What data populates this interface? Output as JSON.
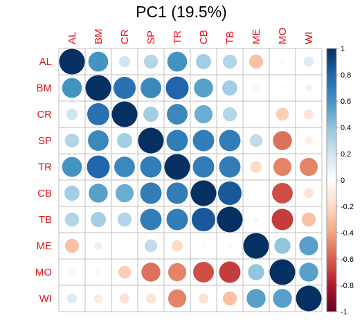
{
  "chart_data": {
    "type": "heatmap",
    "style": "circle-correlation-matrix",
    "title": "PC1 (19.5%)",
    "variables": [
      "AL",
      "BM",
      "CR",
      "SP",
      "TR",
      "CB",
      "TB",
      "ME",
      "MO",
      "WI"
    ],
    "matrix": [
      [
        1.0,
        0.6,
        0.2,
        0.3,
        0.6,
        0.35,
        0.3,
        -0.3,
        0.05,
        0.15
      ],
      [
        0.6,
        1.0,
        0.75,
        0.65,
        0.8,
        0.55,
        0.35,
        0.05,
        0.03,
        -0.08
      ],
      [
        0.2,
        0.75,
        1.0,
        0.35,
        0.65,
        0.5,
        0.3,
        0.02,
        -0.25,
        -0.15
      ],
      [
        0.3,
        0.65,
        0.35,
        1.0,
        0.7,
        0.7,
        0.7,
        0.25,
        -0.55,
        -0.1
      ],
      [
        0.6,
        0.8,
        0.65,
        0.7,
        1.0,
        0.7,
        0.7,
        -0.2,
        -0.5,
        -0.5
      ],
      [
        0.35,
        0.55,
        0.5,
        0.7,
        0.7,
        1.0,
        0.85,
        0.02,
        -0.65,
        -0.15
      ],
      [
        0.3,
        0.35,
        0.3,
        0.7,
        0.7,
        0.85,
        1.0,
        0.05,
        -0.7,
        -0.3
      ],
      [
        -0.3,
        0.1,
        0.02,
        0.25,
        -0.2,
        0.03,
        -0.05,
        1.0,
        0.4,
        0.55
      ],
      [
        0.05,
        -0.05,
        -0.25,
        -0.55,
        -0.5,
        -0.65,
        -0.7,
        0.4,
        1.0,
        0.55
      ],
      [
        0.15,
        -0.12,
        -0.15,
        -0.15,
        -0.5,
        -0.15,
        -0.3,
        0.55,
        0.55,
        1.0
      ]
    ],
    "colorbar": {
      "range": [
        -1,
        1
      ],
      "ticks": [
        "1",
        "0.8",
        "0.6",
        "0.4",
        "0.2",
        "0",
        "-0.2",
        "-0.4",
        "-0.6",
        "-0.8",
        "-1"
      ]
    },
    "colors": {
      "label": "#e8121a",
      "grid": "#bfbfbf",
      "scale": [
        "#67001f",
        "#b2182b",
        "#d6604d",
        "#f4a582",
        "#fddbc7",
        "#ffffff",
        "#d1e5f0",
        "#92c5de",
        "#4393c3",
        "#2166ac",
        "#053061"
      ]
    },
    "grid": true,
    "legend": "right"
  }
}
